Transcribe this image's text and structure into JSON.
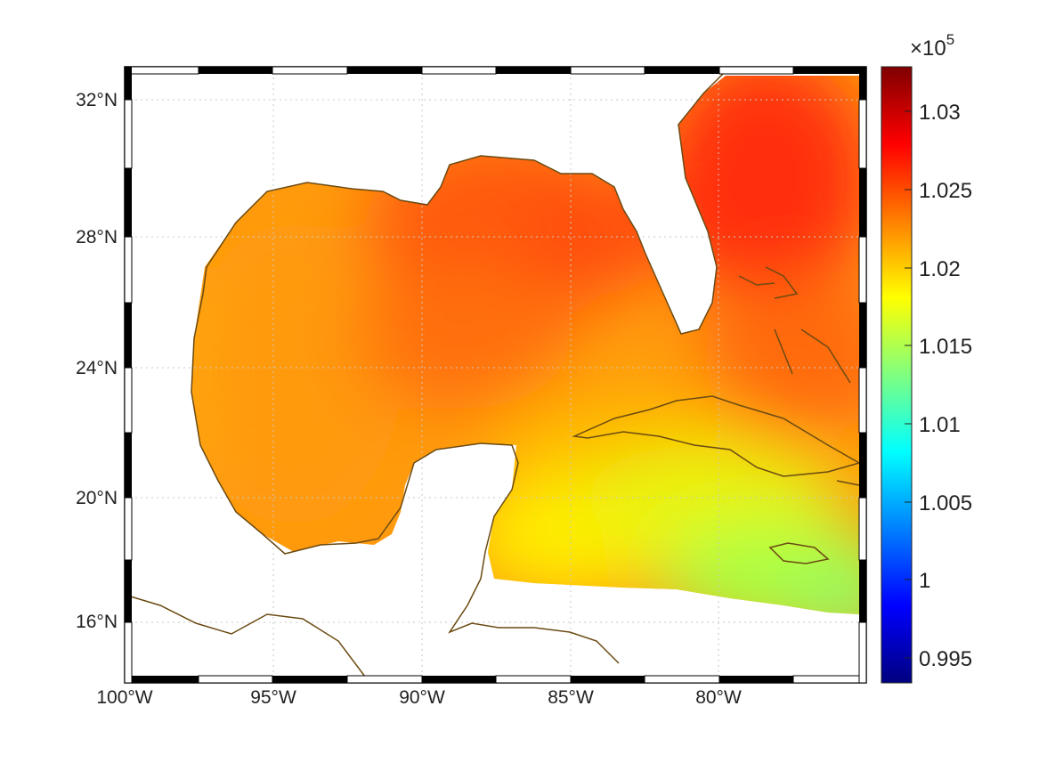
{
  "chart_data": {
    "type": "heatmap",
    "title": "",
    "xlabel": "",
    "ylabel": "",
    "lon_range": [
      -100,
      -75
    ],
    "lat_range": [
      14.5,
      33
    ],
    "lon_ticks": [
      -100,
      -95,
      -90,
      -85,
      -80
    ],
    "lon_tick_labels": [
      "100°W",
      "95°W",
      "90°W",
      "85°W",
      "80°W"
    ],
    "lat_ticks": [
      16,
      20,
      24,
      28,
      32
    ],
    "lat_tick_labels": [
      "16°N",
      "20°N",
      "24°N",
      "28°N",
      "32°N"
    ],
    "grid": true,
    "colormap": "jet",
    "colorbar": {
      "range": [
        0.9935,
        1.033
      ],
      "ticks": [
        0.995,
        1.0,
        1.005,
        1.01,
        1.015,
        1.02,
        1.025,
        1.03
      ],
      "tick_labels": [
        "0.995",
        "1",
        "1.005",
        "1.01",
        "1.015",
        "1.02",
        "1.025",
        "1.03"
      ],
      "multiplier_base": "×10",
      "multiplier_exponent": "5"
    },
    "field_estimate": [
      {
        "region": "western Gulf",
        "value": 1.022
      },
      {
        "region": "central / northern Gulf",
        "value": 1.024
      },
      {
        "region": "Florida / Atlantic (north-east)",
        "value": 1.028
      },
      {
        "region": "Yucatan Channel / western Caribbean",
        "value": 1.019
      },
      {
        "region": "south-east Caribbean (near 77°W 17°N)",
        "value": 1.0165
      }
    ]
  },
  "colors": {
    "coastline": "#6b4a12",
    "grid": "#c8c8c8",
    "frame": "#000000",
    "land_mask": "#ffffff"
  }
}
